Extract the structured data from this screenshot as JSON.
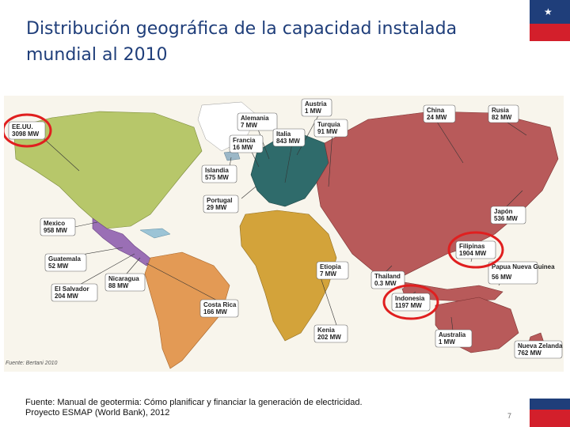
{
  "slide": {
    "title": "Distribución geográfica de la capacidad instalada mundial al 2010",
    "source_line1": "Fuente: Manual de geotermia: Cómo planificar y financiar la generación de electricidad.",
    "source_line2": "Proyecto ESMAP (World Bank), 2012",
    "page_number": "7",
    "map_source_note": "Fuente: Bertani 2010"
  },
  "colors": {
    "title": "#1f3e7a",
    "flag_blue": "#1f3e7a",
    "flag_red": "#d31f2b",
    "north_america": "#b7c76a",
    "central_america": "#9a6fb5",
    "south_america": "#e39a55",
    "europe": "#2f6b6b",
    "africa": "#d3a33a",
    "asia": "#b85a5a",
    "highlight": "#e01f1f"
  },
  "labels": [
    {
      "name": "EE.UU.",
      "value": "3098 MW",
      "highlighted": true
    },
    {
      "name": "Mexico",
      "value": "958 MW",
      "highlighted": false
    },
    {
      "name": "Guatemala",
      "value": "52 MW",
      "highlighted": false
    },
    {
      "name": "Nicaragua",
      "value": "88 MW",
      "highlighted": false
    },
    {
      "name": "El Salvador",
      "value": "204 MW",
      "highlighted": false
    },
    {
      "name": "Costa Rica",
      "value": "166 MW",
      "highlighted": false
    },
    {
      "name": "Alemania",
      "value": "7 MW",
      "highlighted": false
    },
    {
      "name": "Francia",
      "value": "16 MW",
      "highlighted": false
    },
    {
      "name": "Islandia",
      "value": "575 MW",
      "highlighted": false
    },
    {
      "name": "Portugal",
      "value": "29 MW",
      "highlighted": false
    },
    {
      "name": "Austria",
      "value": "1 MW",
      "highlighted": false
    },
    {
      "name": "Italia",
      "value": "843 MW",
      "highlighted": false
    },
    {
      "name": "Turquia",
      "value": "91 MW",
      "highlighted": false
    },
    {
      "name": "China",
      "value": "24 MW",
      "highlighted": false
    },
    {
      "name": "Rusia",
      "value": "82 MW",
      "highlighted": false
    },
    {
      "name": "Japón",
      "value": "536 MW",
      "highlighted": false
    },
    {
      "name": "Filipinas",
      "value": "1904 MW",
      "highlighted": true
    },
    {
      "name": "Papua Nueva Guinea",
      "value": "56 MW",
      "highlighted": false
    },
    {
      "name": "Etiopia",
      "value": "7 MW",
      "highlighted": false
    },
    {
      "name": "Thailand",
      "value": "0.3 MW",
      "highlighted": false
    },
    {
      "name": "Indonesia",
      "value": "1197 MW",
      "highlighted": true
    },
    {
      "name": "Kenia",
      "value": "202 MW",
      "highlighted": false
    },
    {
      "name": "Australia",
      "value": "1 MW",
      "highlighted": false
    },
    {
      "name": "Nueva Zelanda",
      "value": "762 MW",
      "highlighted": false
    }
  ]
}
